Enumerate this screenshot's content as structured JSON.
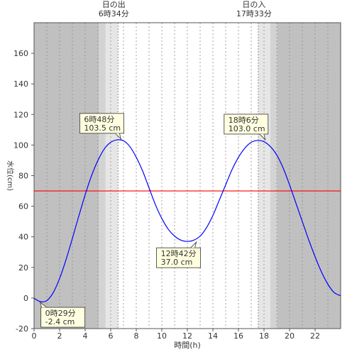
{
  "chart_data": {
    "type": "line",
    "xlabel": "時間(h)",
    "ylabel": "水位(cm)",
    "xlim": [
      0,
      24
    ],
    "ylim": [
      -20,
      180
    ],
    "x_ticks": [
      0,
      2,
      4,
      6,
      8,
      10,
      12,
      14,
      16,
      18,
      20,
      22
    ],
    "x_tick_labels": [
      "0",
      "2",
      "4",
      "6",
      "8",
      "10",
      "12",
      "14",
      "16",
      "18",
      "20",
      "22"
    ],
    "y_ticks": [
      -20,
      0,
      20,
      40,
      60,
      80,
      100,
      120,
      140,
      160
    ],
    "y_tick_labels": [
      "-20",
      "0",
      "20",
      "40",
      "60",
      "80",
      "100",
      "120",
      "140",
      "160"
    ],
    "grid": "vertical dotted",
    "colors": {
      "tide_line": "#0000ff",
      "reference_line": "#ff0000",
      "night": "#c0c0c0",
      "twilight_outer": "#d3d3d3",
      "twilight_inner": "#e6e6e6",
      "day": "#ffffff"
    },
    "background_bands": [
      {
        "kind": "night",
        "from": 0,
        "to": 5.07
      },
      {
        "kind": "twilight_outer",
        "from": 5.07,
        "to": 5.6
      },
      {
        "kind": "twilight_inner",
        "from": 5.6,
        "to": 6.57
      },
      {
        "kind": "day",
        "from": 6.57,
        "to": 17.55
      },
      {
        "kind": "twilight_inner",
        "from": 17.55,
        "to": 18.5
      },
      {
        "kind": "twilight_outer",
        "from": 18.5,
        "to": 19.02
      },
      {
        "kind": "night",
        "from": 19.02,
        "to": 24
      }
    ],
    "sun_markers": [
      {
        "x": 6.57,
        "label": "日の出",
        "time": "6時34分"
      },
      {
        "x": 17.55,
        "label": "日の入",
        "time": "17時33分"
      }
    ],
    "reference_level": 70,
    "series": [
      {
        "x": [
          0,
          0.5,
          1,
          1.5,
          2,
          2.5,
          3,
          3.5,
          4,
          4.5,
          5,
          5.5,
          6,
          6.5,
          7,
          7.5,
          8,
          8.5,
          9,
          9.5,
          10,
          10.5,
          11,
          11.5,
          12,
          12.5,
          13,
          13.5,
          14,
          14.5,
          15,
          15.5,
          16,
          16.5,
          17,
          17.5,
          18,
          18.5,
          19,
          19.5,
          20,
          20.5,
          21,
          21.5,
          22,
          22.5,
          23,
          23.5,
          24
        ],
        "values": [
          -0.2,
          -2.4,
          -1.7,
          3.5,
          12.8,
          25.0,
          39.0,
          53.5,
          67.5,
          80.0,
          90.0,
          97.5,
          101.8,
          103.4,
          102.8,
          99.0,
          92.0,
          83.0,
          72.0,
          61.0,
          52.0,
          45.0,
          40.5,
          37.8,
          37.0,
          37.8,
          40.5,
          46.0,
          54.0,
          64.0,
          74.0,
          84.0,
          92.0,
          98.0,
          101.8,
          103.0,
          102.2,
          99.0,
          93.5,
          85.0,
          74.0,
          62.0,
          50.0,
          38.0,
          27.0,
          17.0,
          9.0,
          3.5,
          1.5
        ]
      }
    ],
    "annotations": [
      {
        "x": 0.48,
        "y": -2.4,
        "time": "0時29分",
        "value": "-2.4 cm",
        "placement": "below-right"
      },
      {
        "x": 6.8,
        "y": 103.5,
        "time": "6時48分",
        "value": "103.5 cm",
        "placement": "above-left"
      },
      {
        "x": 12.7,
        "y": 37.0,
        "time": "12時42分",
        "value": "37.0 cm",
        "placement": "below-left"
      },
      {
        "x": 18.1,
        "y": 103.0,
        "time": "18時6分",
        "value": "103.0 cm",
        "placement": "above-left"
      }
    ]
  }
}
